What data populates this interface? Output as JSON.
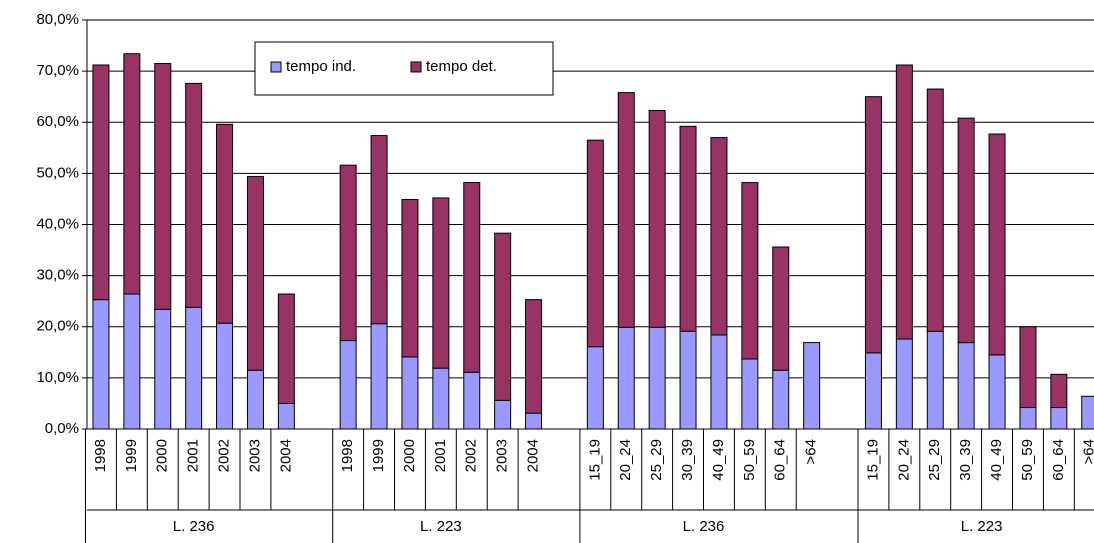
{
  "chart_data": {
    "type": "stacked_bar",
    "categories": [
      "1998",
      "1999",
      "2000",
      "2001",
      "2002",
      "2003",
      "2004",
      null,
      "1998",
      "1999",
      "2000",
      "2001",
      "2002",
      "2003",
      "2004",
      null,
      "15_19",
      "20_24",
      "25_29",
      "30_39",
      "40_49",
      "50_59",
      "60_64",
      ">64",
      null,
      "15_19",
      "20_24",
      "25_29",
      "30_39",
      "40_49",
      "50_59",
      "60_64",
      ">64"
    ],
    "groups": [
      "L. 236",
      "L. 223",
      "L. 236",
      "L. 223"
    ],
    "series": [
      {
        "name": "tempo ind.",
        "color": "#9999ff",
        "values": [
          25.3,
          26.4,
          23.4,
          23.8,
          20.7,
          11.5,
          5.0,
          null,
          17.3,
          20.6,
          14.1,
          11.9,
          11.1,
          5.6,
          3.1,
          null,
          16.1,
          19.9,
          19.9,
          19.1,
          18.4,
          13.7,
          11.5,
          16.9,
          null,
          14.9,
          17.6,
          19.1,
          16.9,
          14.5,
          4.2,
          4.2,
          6.4
        ]
      },
      {
        "name": "tempo det.",
        "color": "#993366",
        "values": [
          45.9,
          47.0,
          48.1,
          43.8,
          38.9,
          37.9,
          21.4,
          null,
          34.3,
          36.8,
          30.8,
          33.3,
          37.1,
          32.7,
          22.2,
          null,
          40.4,
          45.9,
          42.4,
          40.1,
          38.6,
          34.5,
          24.1,
          0,
          null,
          50.1,
          53.6,
          47.4,
          43.9,
          43.2,
          15.8,
          6.5,
          0
        ]
      }
    ],
    "ylim": [
      0,
      80
    ],
    "yticks": [
      {
        "value": 0,
        "label": "0,0%"
      },
      {
        "value": 10,
        "label": "10,0%"
      },
      {
        "value": 20,
        "label": "20,0%"
      },
      {
        "value": 30,
        "label": "30,0%"
      },
      {
        "value": 40,
        "label": "40,0%"
      },
      {
        "value": 50,
        "label": "50,0%"
      },
      {
        "value": 60,
        "label": "60,0%"
      },
      {
        "value": 70,
        "label": "70,0%"
      },
      {
        "value": 80,
        "label": "80,0%"
      }
    ],
    "grid": true,
    "legend": "top"
  }
}
